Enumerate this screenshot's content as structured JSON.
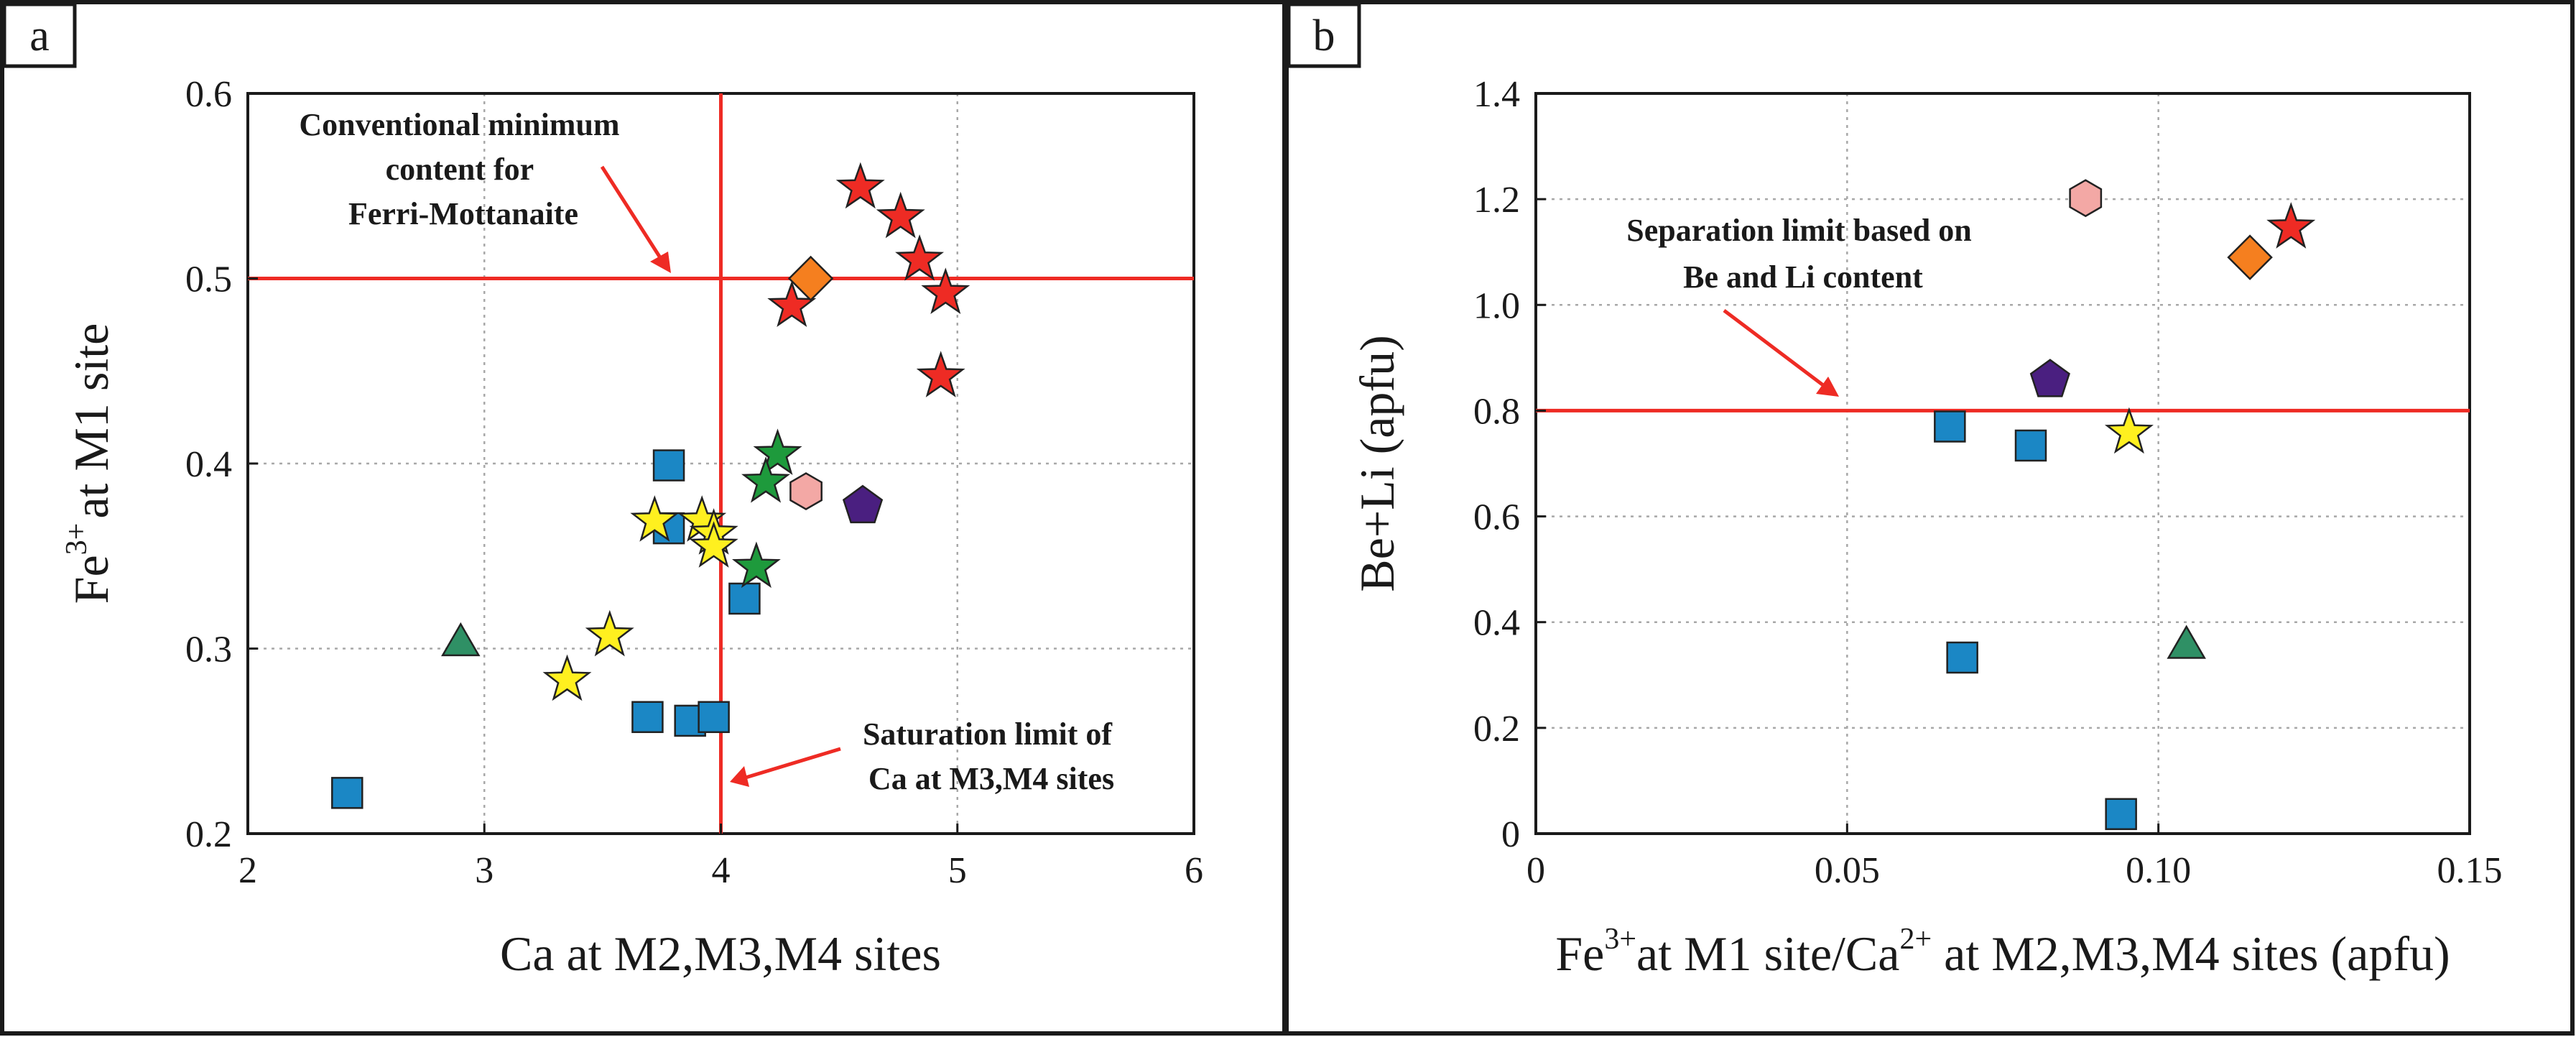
{
  "chart_data": [
    {
      "type": "scatter",
      "panel_label": "a",
      "xlabel": "Ca at M2,M3,M4 sites",
      "ylabel": "at M1 site",
      "ylabel_base": "Fe",
      "ylabel_sup": "3+",
      "xlim": [
        2,
        6
      ],
      "ylim": [
        0.2,
        0.6
      ],
      "xticks": [
        2,
        3,
        4,
        5,
        6
      ],
      "xtick_labels": [
        "2",
        "3",
        "4",
        "5",
        "6"
      ],
      "yticks": [
        0.2,
        0.3,
        0.4,
        0.5,
        0.6
      ],
      "ytick_labels": [
        "0.2",
        "0.3",
        "0.4",
        "0.5",
        "0.6"
      ],
      "grid": true,
      "reference_lines": [
        {
          "orientation": "horizontal",
          "value": 0.5,
          "color": "#ee2b24"
        },
        {
          "orientation": "vertical",
          "value": 4,
          "color": "#ee2b24"
        }
      ],
      "annotations": [
        {
          "lines": [
            "Conventional minimum",
            "content for",
            "Ferri-Mottanaite"
          ]
        },
        {
          "lines": [
            "Saturation limit of",
            "Ca at M3,M4 sites"
          ]
        }
      ],
      "series": [
        {
          "name": "blue squares",
          "marker": "square",
          "color": "#1b87c5",
          "points": [
            [
              2.42,
              0.222
            ],
            [
              3.78,
              0.399
            ],
            [
              3.78,
              0.365
            ],
            [
              3.69,
              0.263
            ],
            [
              3.87,
              0.261
            ],
            [
              3.97,
              0.263
            ],
            [
              4.1,
              0.327
            ]
          ]
        },
        {
          "name": "yellow stars",
          "marker": "star",
          "color": "#fff01f",
          "points": [
            [
              3.35,
              0.283
            ],
            [
              3.53,
              0.307
            ],
            [
              3.72,
              0.369
            ],
            [
              3.92,
              0.369
            ],
            [
              3.97,
              0.362
            ],
            [
              3.97,
              0.355
            ]
          ]
        },
        {
          "name": "green stars",
          "marker": "star",
          "color": "#1e9a3c",
          "points": [
            [
              4.24,
              0.405
            ],
            [
              4.19,
              0.39
            ],
            [
              4.15,
              0.344
            ]
          ]
        },
        {
          "name": "red stars",
          "marker": "star",
          "color": "#ee2b24",
          "points": [
            [
              4.59,
              0.549
            ],
            [
              4.76,
              0.533
            ],
            [
              4.84,
              0.51
            ],
            [
              4.3,
              0.485
            ],
            [
              4.95,
              0.492
            ],
            [
              4.93,
              0.447
            ]
          ]
        },
        {
          "name": "orange diamond",
          "marker": "diamond",
          "color": "#f57f1f",
          "points": [
            [
              4.38,
              0.5
            ]
          ]
        },
        {
          "name": "pink hexagon",
          "marker": "hexagon",
          "color": "#f3a8a5",
          "points": [
            [
              4.36,
              0.385
            ]
          ]
        },
        {
          "name": "purple pentagon",
          "marker": "pentagon",
          "color": "#4a1f80",
          "points": [
            [
              4.6,
              0.377
            ]
          ]
        },
        {
          "name": "teal triangle",
          "marker": "triangle",
          "color": "#2f9065",
          "points": [
            [
              2.9,
              0.302
            ]
          ]
        }
      ]
    },
    {
      "type": "scatter",
      "panel_label": "b",
      "xlabel": "at M1 site/Ca",
      "xlabel_lead_base": "Fe",
      "xlabel_lead_sup": "3+",
      "xlabel_mid_sup": "2+",
      "xlabel_tail": " at M2,M3,M4 sites (apfu)",
      "ylabel": "Be+Li (apfu)",
      "xlim": [
        0,
        0.15
      ],
      "ylim": [
        0,
        1.4
      ],
      "xticks": [
        0,
        0.05,
        0.1,
        0.15
      ],
      "xtick_labels": [
        "0",
        "0.05",
        "0.10",
        "0.15"
      ],
      "yticks": [
        0,
        0.2,
        0.4,
        0.6,
        0.8,
        1.0,
        1.2,
        1.4
      ],
      "ytick_labels": [
        "0",
        "0.2",
        "0.4",
        "0.6",
        "0.8",
        "1.0",
        "1.2",
        "1.4"
      ],
      "grid": true,
      "reference_lines": [
        {
          "orientation": "horizontal",
          "value": 0.8,
          "color": "#ee2b24"
        }
      ],
      "annotations": [
        {
          "lines": [
            "Separation limit based on",
            "Be and Li content"
          ]
        }
      ],
      "series": [
        {
          "name": "blue squares",
          "marker": "square",
          "color": "#1b87c5",
          "points": [
            [
              0.0665,
              0.77
            ],
            [
              0.0795,
              0.734
            ],
            [
              0.0685,
              0.333
            ],
            [
              0.094,
              0.037
            ]
          ]
        },
        {
          "name": "yellow star",
          "marker": "star",
          "color": "#fff01f",
          "points": [
            [
              0.0953,
              0.758
            ]
          ]
        },
        {
          "name": "red star",
          "marker": "star",
          "color": "#ee2b24",
          "points": [
            [
              0.1213,
              1.146
            ]
          ]
        },
        {
          "name": "orange diamond",
          "marker": "diamond",
          "color": "#f57f1f",
          "points": [
            [
              0.1147,
              1.09
            ]
          ]
        },
        {
          "name": "pink hexagon",
          "marker": "hexagon",
          "color": "#f3a8a5",
          "points": [
            [
              0.0883,
              1.202
            ]
          ]
        },
        {
          "name": "purple pentagon",
          "marker": "pentagon",
          "color": "#4a1f80",
          "points": [
            [
              0.0826,
              0.858
            ]
          ]
        },
        {
          "name": "teal triangle",
          "marker": "triangle",
          "color": "#2f9065",
          "points": [
            [
              0.1045,
              0.352
            ]
          ]
        }
      ]
    }
  ]
}
